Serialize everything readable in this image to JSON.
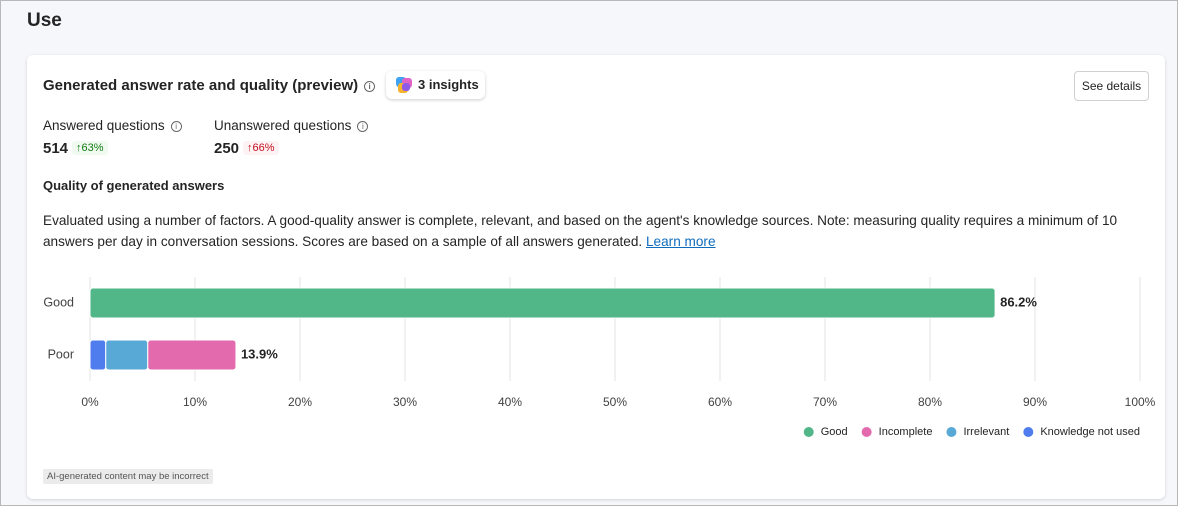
{
  "header": {
    "title": "Use"
  },
  "card": {
    "title": "Generated answer rate and quality (preview)",
    "insights": "3 insights",
    "details_button": "See details",
    "metrics": [
      {
        "label": "Answered questions",
        "value": "514",
        "change": "63%"
      },
      {
        "label": "Unanswered questions",
        "value": "250",
        "change": "66%"
      }
    ],
    "section_title": "Quality of generated answers",
    "description": "Evaluated using a number of factors. A good-quality answer is complete, relevant, and based on the agent's knowledge sources. Note: measuring quality requires a minimum of 10 answers per day in conversation sessions. Scores are based on a sample of all answers generated.",
    "link": "Learn more",
    "disclaimer": "AI-generated content may be incorrect"
  },
  "chart_data": {
    "type": "stacked-bar-horizontal",
    "categories": [
      "Good",
      "Poor"
    ],
    "series": [
      {
        "name": "Good",
        "color": "#52b788",
        "values": [
          86.2,
          null
        ]
      },
      {
        "name": "Incomplete",
        "color": "#e46aae",
        "values": [
          null,
          8.4
        ]
      },
      {
        "name": "Irrelevant",
        "color": "#58a9d5",
        "values": [
          null,
          4.0
        ]
      },
      {
        "name": "Knowledge not used",
        "color": "#4f7ded",
        "values": [
          null,
          1.5
        ]
      }
    ],
    "totals": [
      86.2,
      13.9
    ],
    "total_labels": [
      "86.2%",
      "13.9%"
    ],
    "xlim": [
      0,
      100
    ],
    "xticks": [
      {
        "value": 0,
        "label": "0%"
      },
      {
        "value": 10,
        "label": "10%"
      },
      {
        "value": 20,
        "label": "20%"
      },
      {
        "value": 30,
        "label": "30%"
      },
      {
        "value": 40,
        "label": "40%"
      },
      {
        "value": 50,
        "label": "50%"
      },
      {
        "value": 60,
        "label": "60%"
      },
      {
        "value": 70,
        "label": "70%"
      },
      {
        "value": 80,
        "label": "80%"
      },
      {
        "value": 90,
        "label": "90%"
      },
      {
        "value": 100,
        "label": "100%"
      }
    ],
    "grid": true,
    "legend": "bottom-right"
  }
}
